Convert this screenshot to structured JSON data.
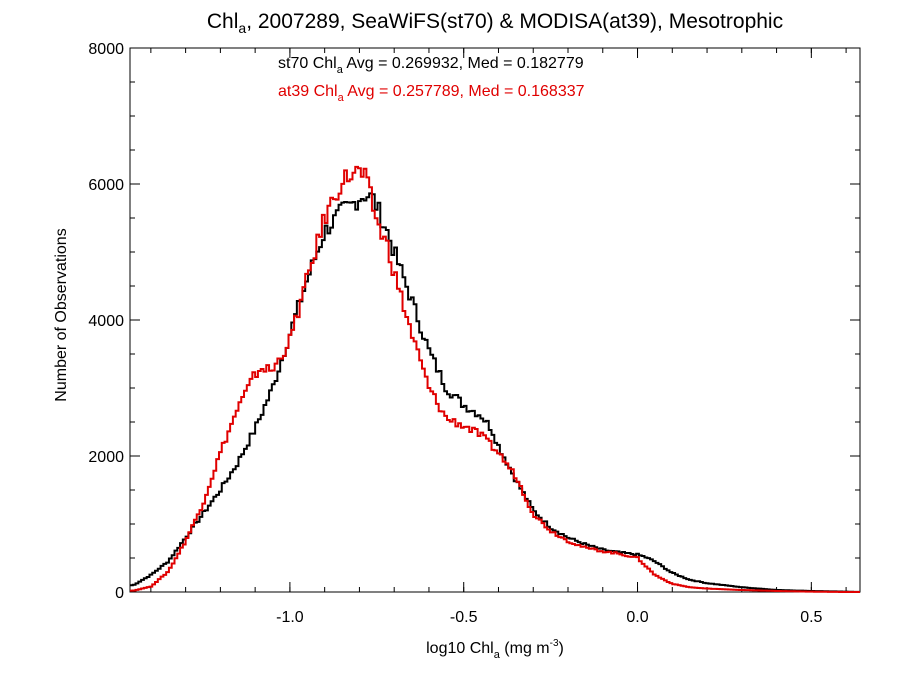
{
  "chart_data": {
    "type": "line",
    "title": {
      "prefix": "Chl",
      "sub": "a",
      "rest": ", 2007289, SeaWiFS(st70) & MODISA(at39), Mesotrophic"
    },
    "xlabel": {
      "prefix": "log10 Chl",
      "sub": "a",
      "mid": " (mg m",
      "sup": "-3",
      "end": ")"
    },
    "ylabel": "Number of Observations",
    "xlim": [
      -1.46,
      0.64
    ],
    "ylim": [
      0,
      8000
    ],
    "x_ticks": [
      {
        "value": -1.0,
        "label": "-1.0"
      },
      {
        "value": -0.5,
        "label": "-0.5"
      },
      {
        "value": 0.0,
        "label": "0.0"
      },
      {
        "value": 0.5,
        "label": "0.5"
      }
    ],
    "y_ticks": [
      {
        "value": 0,
        "label": "0"
      },
      {
        "value": 2000,
        "label": "2000"
      },
      {
        "value": 4000,
        "label": "4000"
      },
      {
        "value": 6000,
        "label": "6000"
      },
      {
        "value": 8000,
        "label": "8000"
      }
    ],
    "x_minor_step": 0.1,
    "y_minor_step": 500,
    "annotations": [
      {
        "prefix": "st70 Chl",
        "sub": "a",
        "rest": " Avg = 0.269932, Med = 0.182779",
        "color": "#000000"
      },
      {
        "prefix": "at39 Chl",
        "sub": "a",
        "rest": " Avg = 0.257789, Med = 0.168337",
        "color": "#e00000"
      }
    ],
    "series": [
      {
        "color": "#000000",
        "x": [
          -1.45,
          -1.4,
          -1.35,
          -1.3,
          -1.25,
          -1.2,
          -1.15,
          -1.1,
          -1.05,
          -1.0,
          -0.95,
          -0.9,
          -0.85,
          -0.82,
          -0.8,
          -0.78,
          -0.76,
          -0.74,
          -0.72,
          -0.7,
          -0.65,
          -0.6,
          -0.55,
          -0.5,
          -0.45,
          -0.42,
          -0.4,
          -0.35,
          -0.3,
          -0.25,
          -0.2,
          -0.15,
          -0.1,
          -0.05,
          0.0,
          0.02,
          0.05,
          0.1,
          0.15,
          0.2,
          0.3,
          0.4,
          0.5,
          0.6,
          0.64
        ],
        "values": [
          100,
          250,
          450,
          800,
          1150,
          1500,
          1900,
          2400,
          3000,
          3800,
          4600,
          5300,
          5600,
          5700,
          5800,
          5850,
          5780,
          5550,
          5300,
          5000,
          4300,
          3550,
          3000,
          2750,
          2600,
          2400,
          2150,
          1650,
          1200,
          950,
          800,
          700,
          620,
          580,
          550,
          520,
          450,
          280,
          180,
          130,
          70,
          30,
          15,
          5,
          0
        ]
      },
      {
        "color": "#e00000",
        "x": [
          -1.45,
          -1.4,
          -1.35,
          -1.3,
          -1.25,
          -1.2,
          -1.15,
          -1.12,
          -1.1,
          -1.08,
          -1.05,
          -1.0,
          -0.95,
          -0.9,
          -0.85,
          -0.82,
          -0.8,
          -0.78,
          -0.76,
          -0.74,
          -0.72,
          -0.7,
          -0.65,
          -0.6,
          -0.55,
          -0.5,
          -0.45,
          -0.42,
          -0.4,
          -0.35,
          -0.3,
          -0.25,
          -0.2,
          -0.15,
          -0.1,
          -0.05,
          0.0,
          0.02,
          0.05,
          0.1,
          0.15,
          0.2,
          0.3,
          0.4,
          0.5,
          0.6,
          0.64
        ],
        "values": [
          20,
          80,
          300,
          750,
          1300,
          2050,
          2700,
          3000,
          3200,
          3300,
          3250,
          3700,
          4600,
          5500,
          6050,
          6150,
          6180,
          6050,
          5650,
          5300,
          5100,
          4700,
          3800,
          3000,
          2550,
          2450,
          2300,
          2150,
          2050,
          1700,
          1150,
          900,
          750,
          650,
          600,
          560,
          500,
          400,
          250,
          120,
          70,
          50,
          30,
          15,
          5,
          0,
          0
        ]
      }
    ]
  }
}
